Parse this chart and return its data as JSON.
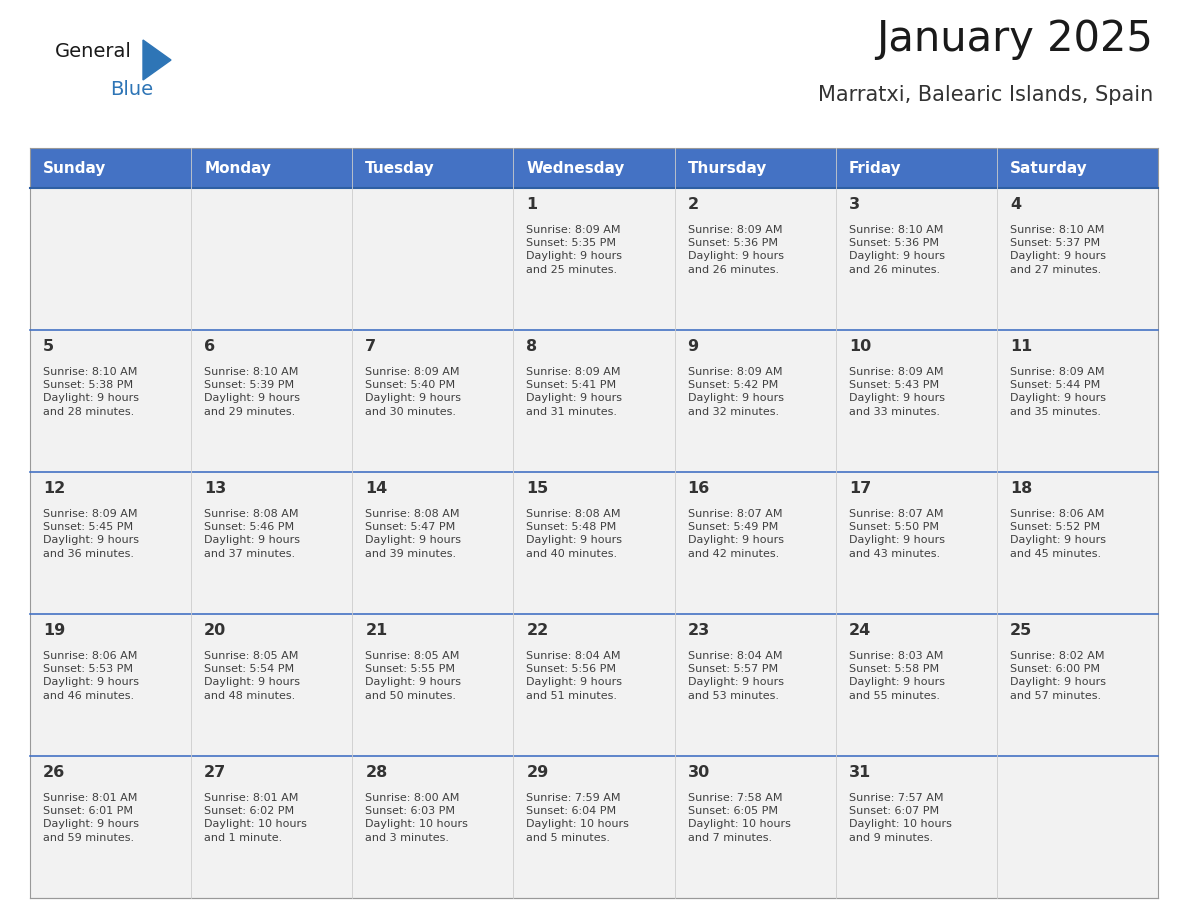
{
  "title": "January 2025",
  "subtitle": "Marratxi, Balearic Islands, Spain",
  "header_color": "#4472C4",
  "header_text_color": "#FFFFFF",
  "days_of_week": [
    "Sunday",
    "Monday",
    "Tuesday",
    "Wednesday",
    "Thursday",
    "Friday",
    "Saturday"
  ],
  "bg_color": "#FFFFFF",
  "cell_bg_color": "#F2F2F2",
  "cell_text_color": "#404040",
  "day_num_color": "#333333",
  "row_line_color": "#4472C4",
  "col_line_color": "#CCCCCC",
  "outer_line_color": "#888888",
  "title_color": "#1A1A1A",
  "subtitle_color": "#333333",
  "logo_general_color": "#1A1A1A",
  "logo_blue_color": "#2E75B6",
  "calendar_data": [
    [
      null,
      null,
      null,
      {
        "day": 1,
        "sunrise": "8:09 AM",
        "sunset": "5:35 PM",
        "daylight": "9 hours and 25 minutes."
      },
      {
        "day": 2,
        "sunrise": "8:09 AM",
        "sunset": "5:36 PM",
        "daylight": "9 hours and 26 minutes."
      },
      {
        "day": 3,
        "sunrise": "8:10 AM",
        "sunset": "5:36 PM",
        "daylight": "9 hours and 26 minutes."
      },
      {
        "day": 4,
        "sunrise": "8:10 AM",
        "sunset": "5:37 PM",
        "daylight": "9 hours and 27 minutes."
      }
    ],
    [
      {
        "day": 5,
        "sunrise": "8:10 AM",
        "sunset": "5:38 PM",
        "daylight": "9 hours and 28 minutes."
      },
      {
        "day": 6,
        "sunrise": "8:10 AM",
        "sunset": "5:39 PM",
        "daylight": "9 hours and 29 minutes."
      },
      {
        "day": 7,
        "sunrise": "8:09 AM",
        "sunset": "5:40 PM",
        "daylight": "9 hours and 30 minutes."
      },
      {
        "day": 8,
        "sunrise": "8:09 AM",
        "sunset": "5:41 PM",
        "daylight": "9 hours and 31 minutes."
      },
      {
        "day": 9,
        "sunrise": "8:09 AM",
        "sunset": "5:42 PM",
        "daylight": "9 hours and 32 minutes."
      },
      {
        "day": 10,
        "sunrise": "8:09 AM",
        "sunset": "5:43 PM",
        "daylight": "9 hours and 33 minutes."
      },
      {
        "day": 11,
        "sunrise": "8:09 AM",
        "sunset": "5:44 PM",
        "daylight": "9 hours and 35 minutes."
      }
    ],
    [
      {
        "day": 12,
        "sunrise": "8:09 AM",
        "sunset": "5:45 PM",
        "daylight": "9 hours and 36 minutes."
      },
      {
        "day": 13,
        "sunrise": "8:08 AM",
        "sunset": "5:46 PM",
        "daylight": "9 hours and 37 minutes."
      },
      {
        "day": 14,
        "sunrise": "8:08 AM",
        "sunset": "5:47 PM",
        "daylight": "9 hours and 39 minutes."
      },
      {
        "day": 15,
        "sunrise": "8:08 AM",
        "sunset": "5:48 PM",
        "daylight": "9 hours and 40 minutes."
      },
      {
        "day": 16,
        "sunrise": "8:07 AM",
        "sunset": "5:49 PM",
        "daylight": "9 hours and 42 minutes."
      },
      {
        "day": 17,
        "sunrise": "8:07 AM",
        "sunset": "5:50 PM",
        "daylight": "9 hours and 43 minutes."
      },
      {
        "day": 18,
        "sunrise": "8:06 AM",
        "sunset": "5:52 PM",
        "daylight": "9 hours and 45 minutes."
      }
    ],
    [
      {
        "day": 19,
        "sunrise": "8:06 AM",
        "sunset": "5:53 PM",
        "daylight": "9 hours and 46 minutes."
      },
      {
        "day": 20,
        "sunrise": "8:05 AM",
        "sunset": "5:54 PM",
        "daylight": "9 hours and 48 minutes."
      },
      {
        "day": 21,
        "sunrise": "8:05 AM",
        "sunset": "5:55 PM",
        "daylight": "9 hours and 50 minutes."
      },
      {
        "day": 22,
        "sunrise": "8:04 AM",
        "sunset": "5:56 PM",
        "daylight": "9 hours and 51 minutes."
      },
      {
        "day": 23,
        "sunrise": "8:04 AM",
        "sunset": "5:57 PM",
        "daylight": "9 hours and 53 minutes."
      },
      {
        "day": 24,
        "sunrise": "8:03 AM",
        "sunset": "5:58 PM",
        "daylight": "9 hours and 55 minutes."
      },
      {
        "day": 25,
        "sunrise": "8:02 AM",
        "sunset": "6:00 PM",
        "daylight": "9 hours and 57 minutes."
      }
    ],
    [
      {
        "day": 26,
        "sunrise": "8:01 AM",
        "sunset": "6:01 PM",
        "daylight": "9 hours and 59 minutes."
      },
      {
        "day": 27,
        "sunrise": "8:01 AM",
        "sunset": "6:02 PM",
        "daylight": "10 hours and 1 minute."
      },
      {
        "day": 28,
        "sunrise": "8:00 AM",
        "sunset": "6:03 PM",
        "daylight": "10 hours and 3 minutes."
      },
      {
        "day": 29,
        "sunrise": "7:59 AM",
        "sunset": "6:04 PM",
        "daylight": "10 hours and 5 minutes."
      },
      {
        "day": 30,
        "sunrise": "7:58 AM",
        "sunset": "6:05 PM",
        "daylight": "10 hours and 7 minutes."
      },
      {
        "day": 31,
        "sunrise": "7:57 AM",
        "sunset": "6:07 PM",
        "daylight": "10 hours and 9 minutes."
      },
      null
    ]
  ]
}
